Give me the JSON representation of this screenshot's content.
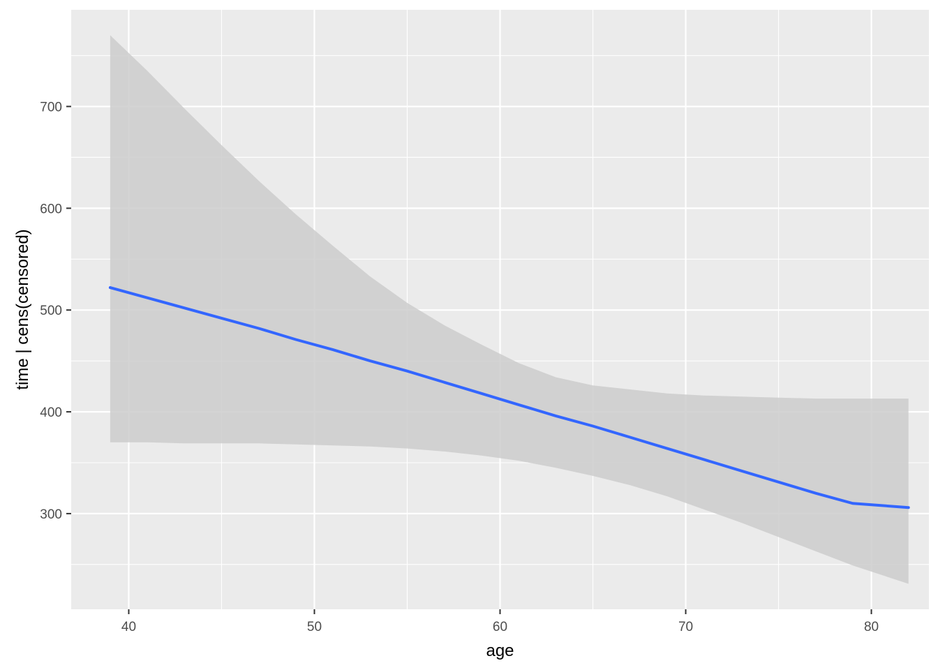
{
  "chart_data": {
    "type": "line",
    "xlabel": "age",
    "ylabel": "time | cens(censored)",
    "xlim": [
      36.9,
      83.1
    ],
    "ylim": [
      206,
      795
    ],
    "x_ticks": [
      40,
      50,
      60,
      70,
      80
    ],
    "y_ticks": [
      300,
      400,
      500,
      600,
      700
    ],
    "x_tick_labels": [
      "40",
      "50",
      "60",
      "70",
      "80"
    ],
    "y_tick_labels": [
      "300",
      "400",
      "500",
      "600",
      "700"
    ],
    "grid": true,
    "legend": "none",
    "colors": {
      "panel": "#ebebeb",
      "grid": "#ffffff",
      "ribbon": "#cccccc",
      "line": "#3366ff"
    },
    "series": [
      {
        "x": [
          39,
          41,
          43,
          45,
          47,
          49,
          51,
          53,
          55,
          57,
          59,
          61,
          63,
          65,
          67,
          69,
          71,
          73,
          75,
          77,
          79,
          82
        ],
        "y": [
          522,
          512,
          502,
          492,
          482,
          471,
          461,
          450,
          440,
          429,
          418,
          407,
          396,
          386,
          375,
          364,
          353,
          342,
          331,
          320,
          310,
          306
        ],
        "lower": [
          370,
          370,
          369,
          369,
          369,
          368,
          367,
          366,
          364,
          361,
          357,
          352,
          345,
          337,
          328,
          317,
          304,
          291,
          277,
          263,
          249,
          231
        ],
        "upper": [
          770,
          735,
          698,
          662,
          627,
          594,
          563,
          533,
          507,
          485,
          466,
          448,
          434,
          426,
          422,
          418,
          416,
          415,
          414,
          413,
          413,
          413
        ]
      }
    ]
  }
}
